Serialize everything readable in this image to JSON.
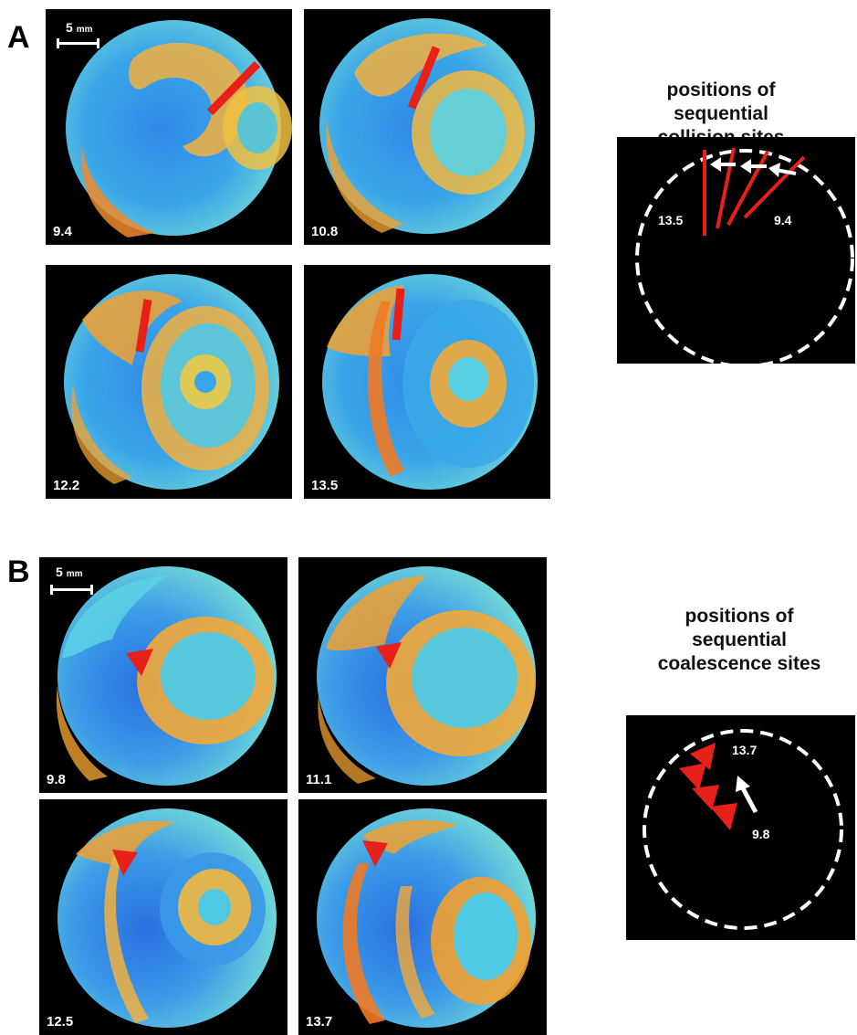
{
  "panel_a": {
    "letter": "A",
    "scale_bar": {
      "value": "5",
      "unit": "mm"
    },
    "frames": [
      {
        "time": "9.4"
      },
      {
        "time": "10.8"
      },
      {
        "time": "12.2"
      },
      {
        "time": "13.5"
      }
    ],
    "schematic": {
      "title_lines": [
        "positions of",
        "sequential",
        "collision sites"
      ],
      "start_label": "13.5",
      "end_label": "9.4"
    }
  },
  "panel_b": {
    "letter": "B",
    "scale_bar": {
      "value": "5",
      "unit": "mm"
    },
    "frames": [
      {
        "time": "9.8"
      },
      {
        "time": "11.1"
      },
      {
        "time": "12.5"
      },
      {
        "time": "13.7"
      }
    ],
    "schematic": {
      "title_lines": [
        "positions of",
        "sequential",
        "coalescence sites"
      ],
      "start_label": "13.7",
      "end_label": "9.8"
    }
  },
  "colors": {
    "background": "#000000",
    "low_activity": "#1565d8",
    "mid_activity": "#5ad7e6",
    "high_activity": "#f0a020",
    "peak_activity": "#e8401a",
    "marker": "#e8201a",
    "dashed_boundary": "#ffffff"
  }
}
